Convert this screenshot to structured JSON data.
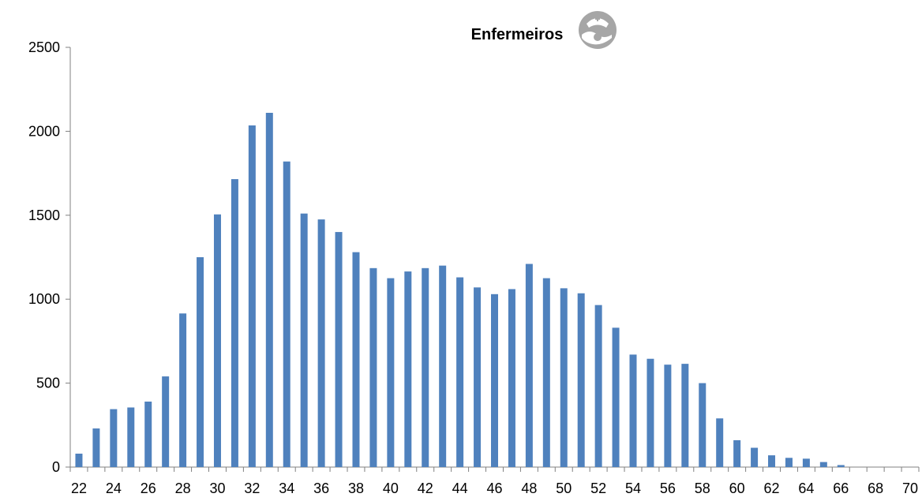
{
  "chart_data": {
    "type": "bar",
    "title": "Enfermeiros",
    "title_icon": "nurse-icon",
    "xlabel": "",
    "ylabel": "",
    "ylim": [
      0,
      2500
    ],
    "yticks": [
      "0",
      "500",
      "1000",
      "1500",
      "2000",
      "2500"
    ],
    "x_tick_labels": [
      "22",
      "24",
      "26",
      "28",
      "30",
      "32",
      "34",
      "36",
      "38",
      "40",
      "42",
      "44",
      "46",
      "48",
      "50",
      "52",
      "54",
      "56",
      "58",
      "60",
      "62",
      "64",
      "66",
      "68",
      "70"
    ],
    "grid": false,
    "legend": "none",
    "bar_color": "#4F81BD",
    "axis_color": "#808080",
    "icon_color": "#A6A6A6",
    "categories": [
      22,
      23,
      24,
      25,
      26,
      27,
      28,
      29,
      30,
      31,
      32,
      33,
      34,
      35,
      36,
      37,
      38,
      39,
      40,
      41,
      42,
      43,
      44,
      45,
      46,
      47,
      48,
      49,
      50,
      51,
      52,
      53,
      54,
      55,
      56,
      57,
      58,
      59,
      60,
      61,
      62,
      63,
      64,
      65,
      66,
      67,
      68,
      69,
      70
    ],
    "values": [
      80,
      230,
      345,
      355,
      390,
      540,
      915,
      1250,
      1505,
      1715,
      2035,
      2110,
      1820,
      1510,
      1475,
      1400,
      1280,
      1185,
      1125,
      1165,
      1185,
      1200,
      1130,
      1070,
      1030,
      1060,
      1210,
      1125,
      1065,
      1035,
      965,
      830,
      670,
      645,
      610,
      615,
      500,
      290,
      160,
      115,
      70,
      55,
      50,
      30,
      12,
      0,
      0,
      0,
      0
    ]
  }
}
